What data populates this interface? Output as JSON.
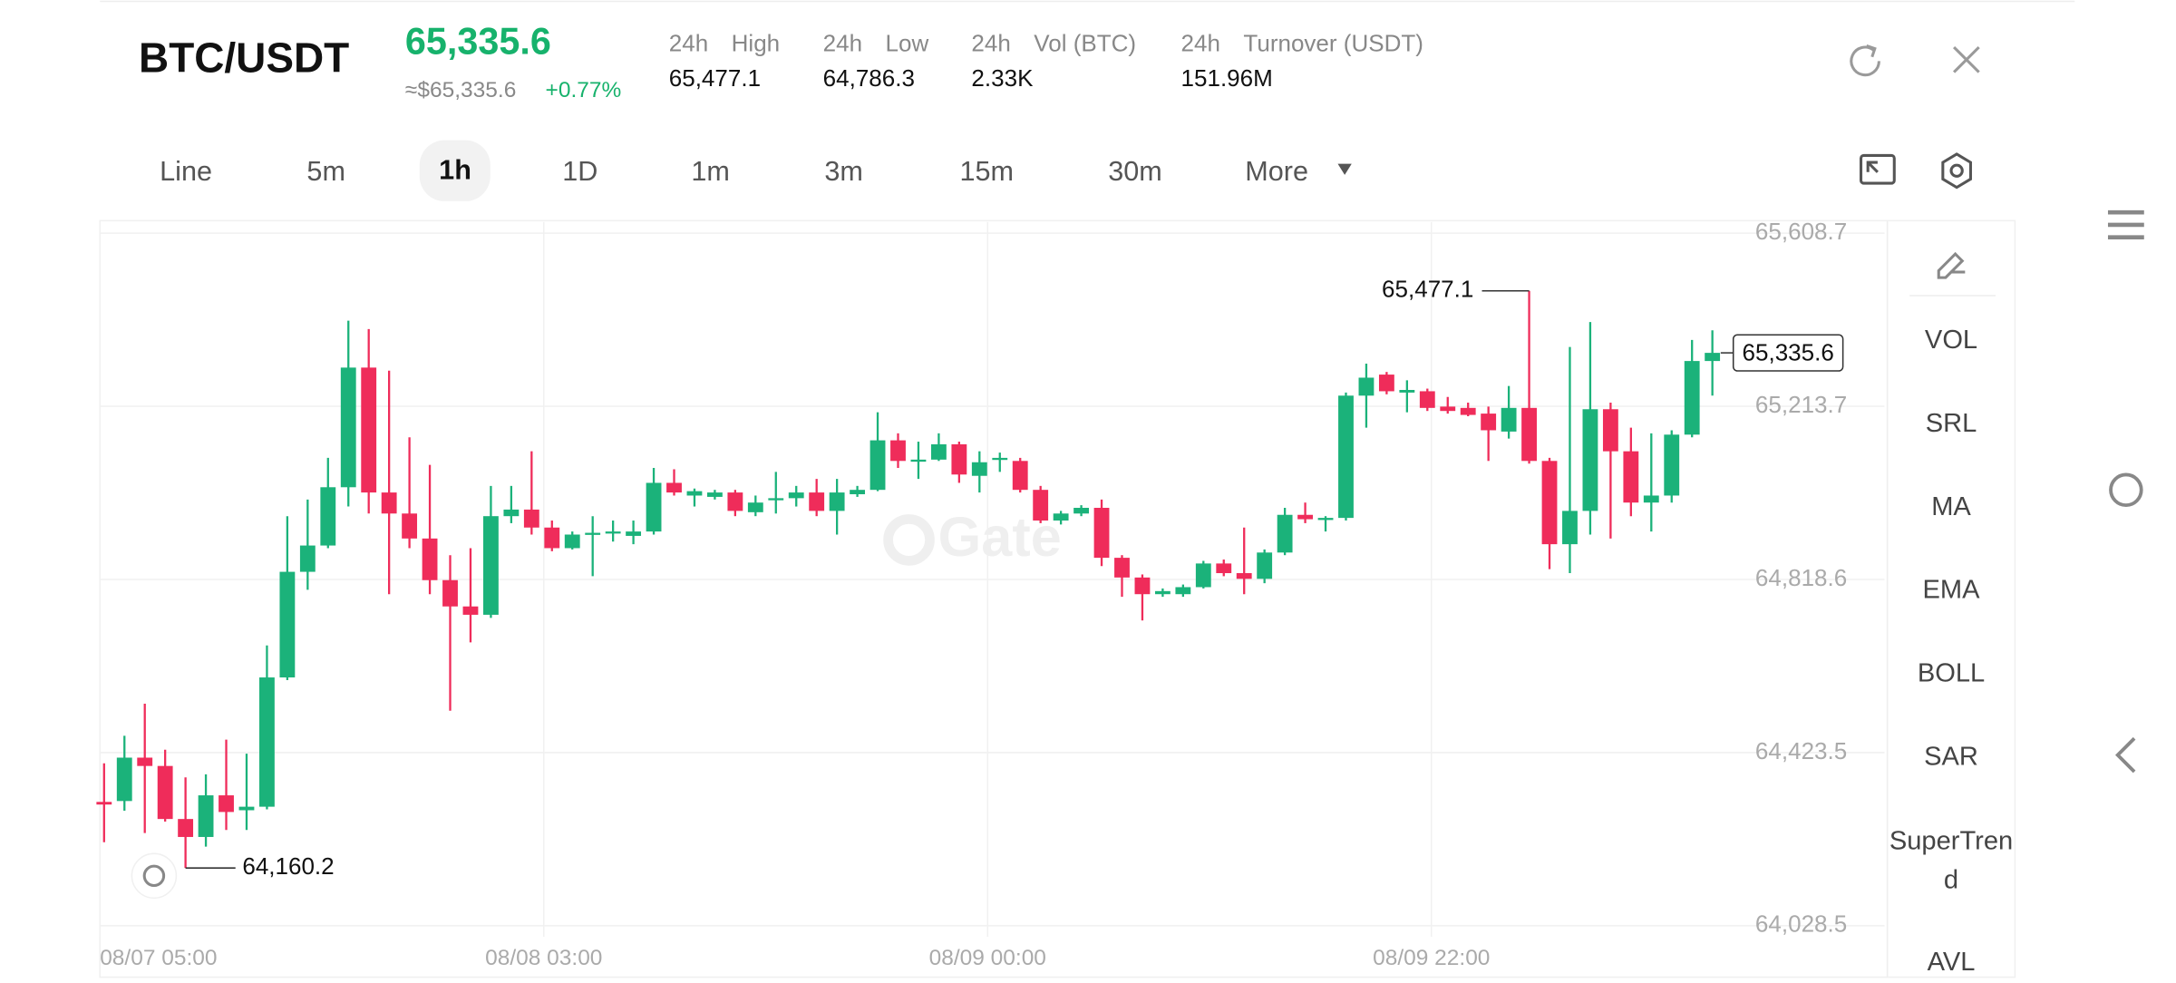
{
  "header": {
    "pair": "BTC/USDT",
    "price": "65,335.6",
    "approx": "≈$65,335.6",
    "change": "+0.77%",
    "stats": [
      {
        "period": "24h",
        "name": "High",
        "value": "65,477.1"
      },
      {
        "period": "24h",
        "name": "Low",
        "value": "64,786.3"
      },
      {
        "period": "24h",
        "name": "Vol (BTC)",
        "value": "2.33K"
      },
      {
        "period": "24h",
        "name": "Turnover (USDT)",
        "value": "151.96M"
      }
    ]
  },
  "timeframes": [
    "Line",
    "5m",
    "1h",
    "1D",
    "1m",
    "3m",
    "15m",
    "30m",
    "More"
  ],
  "selected_timeframe": "1h",
  "indicators": [
    "VOL",
    "SRL",
    "MA",
    "EMA",
    "BOLL",
    "SAR",
    "SuperTrend",
    "AVL"
  ],
  "chart_data": {
    "type": "candlestick",
    "watermark": "Gate",
    "up_color": "#1bb27a",
    "down_color": "#ef2c5a",
    "grid": true,
    "ylim": [
      64003,
      65634
    ],
    "yticks": [
      {
        "value": 64028.5,
        "label": "64,028.5"
      },
      {
        "value": 64423.5,
        "label": "64,423.5"
      },
      {
        "value": 64818.6,
        "label": "64,818.6"
      },
      {
        "value": 65213.7,
        "label": "65,213.7"
      },
      {
        "value": 65608.7,
        "label": "65,608.7"
      }
    ],
    "xlim": [
      -0.2,
      87.5
    ],
    "xticks": [
      {
        "value": -0.2,
        "label": "08/07 05:00"
      },
      {
        "value": 21.6,
        "label": "08/08 03:00"
      },
      {
        "value": 43.4,
        "label": "08/09 00:00"
      },
      {
        "value": 65.2,
        "label": "08/09 22:00"
      }
    ],
    "open": [
      64311,
      64313,
      64412,
      64393,
      64272,
      64231,
      64326,
      64292,
      64300,
      64595,
      64836,
      64896,
      65029,
      65302,
      65017,
      64969,
      64912,
      64817,
      64757,
      64738,
      64963,
      64978,
      64937,
      64890,
      64921,
      64925,
      64918,
      64928,
      65039,
      65010,
      65007,
      65017,
      64972,
      65000,
      65004,
      65017,
      64975,
      65013,
      65023,
      65136,
      65089,
      65092,
      65127,
      65055,
      65092,
      65089,
      65023,
      64953,
      64969,
      64982,
      64868,
      64823,
      64785,
      64785,
      64801,
      64855,
      64833,
      64820,
      64880,
      64966,
      64956,
      64959,
      65238,
      65286,
      65245,
      65248,
      65213,
      65210,
      65197,
      65156,
      65210,
      65089,
      64899,
      64975,
      65207,
      65111,
      64994,
      65010,
      65149,
      65317
    ],
    "high": [
      64399,
      64462,
      64535,
      64430,
      64367,
      64374,
      64453,
      64421,
      64668,
      64963,
      65001,
      65096,
      65409,
      65390,
      65295,
      65143,
      65080,
      64874,
      64890,
      65032,
      65032,
      65111,
      64953,
      64928,
      64963,
      64953,
      64953,
      65073,
      65070,
      65026,
      65023,
      65023,
      65010,
      65064,
      65032,
      65048,
      65048,
      65032,
      65200,
      65152,
      65133,
      65152,
      65133,
      65111,
      65108,
      65096,
      65032,
      64975,
      64988,
      65001,
      64874,
      64830,
      64798,
      64807,
      64861,
      64864,
      64937,
      64887,
      64982,
      64994,
      64963,
      65245,
      65311,
      65292,
      65273,
      65254,
      65235,
      65222,
      65213,
      65260,
      65477.1,
      65096,
      65349,
      65406,
      65222,
      65165,
      65152,
      65159,
      65365,
      65387
    ],
    "low": [
      64219,
      64291,
      64240,
      64266,
      64160.2,
      64209,
      64247,
      64247,
      64294,
      64589,
      64795,
      64890,
      64985,
      64969,
      64785,
      64890,
      64785,
      64519,
      64675,
      64731,
      64947,
      64921,
      64883,
      64887,
      64826,
      64905,
      64899,
      64921,
      65010,
      64985,
      65001,
      64963,
      64963,
      64969,
      64985,
      64963,
      64921,
      65007,
      65020,
      65073,
      65048,
      65089,
      65039,
      65017,
      65064,
      65017,
      64947,
      64944,
      64963,
      64849,
      64779,
      64725,
      64779,
      64779,
      64798,
      64826,
      64785,
      64810,
      64874,
      64947,
      64928,
      64953,
      65165,
      65241,
      65200,
      65203,
      65197,
      65191,
      65089,
      65140,
      65083,
      64842,
      64833,
      64921,
      64912,
      64963,
      64928,
      64994,
      65143,
      65238
    ],
    "close": [
      64305,
      64412,
      64393,
      64272,
      64231,
      64326,
      64288,
      64300,
      64595,
      64836,
      64896,
      65029,
      65302,
      65017,
      64969,
      64912,
      64817,
      64757,
      64738,
      64963,
      64978,
      64937,
      64890,
      64921,
      64925,
      64928,
      64928,
      65039,
      65017,
      65020,
      65017,
      64975,
      64994,
      65004,
      65017,
      64975,
      65017,
      65023,
      65136,
      65089,
      65092,
      65127,
      65058,
      65086,
      65096,
      65023,
      64953,
      64969,
      64982,
      64868,
      64823,
      64785,
      64792,
      64801,
      64855,
      64833,
      64820,
      64880,
      64966,
      64956,
      64959,
      65238,
      65279,
      65248,
      65251,
      65210,
      65203,
      65194,
      65159,
      65210,
      65089,
      64899,
      64975,
      65207,
      65111,
      64994,
      65010,
      65149,
      65317,
      65335.6
    ],
    "last_price": {
      "value": 65335.6,
      "label": "65,335.6"
    },
    "high_marker": {
      "value": 65477.1,
      "label": "65,477.1"
    },
    "low_marker": {
      "value": 64160.2,
      "label": "64,160.2"
    }
  }
}
